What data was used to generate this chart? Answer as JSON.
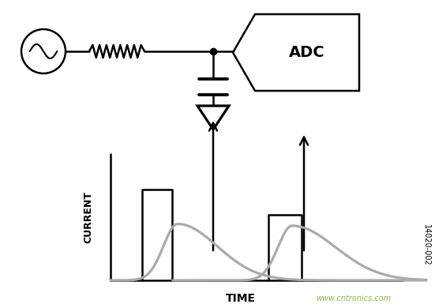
{
  "bg_color": "#ffffff",
  "line_color": "#000000",
  "gray_curve_color": "#aaaaaa",
  "adc_box_label": "ADC",
  "adc_label_fontsize": 14,
  "current_label": "CURRENT",
  "time_label": "TIME",
  "watermark": "www.cntronics.com",
  "figure_id": "14020-002",
  "fig_width": 5.51,
  "fig_height": 3.85,
  "fig_dpi": 100
}
